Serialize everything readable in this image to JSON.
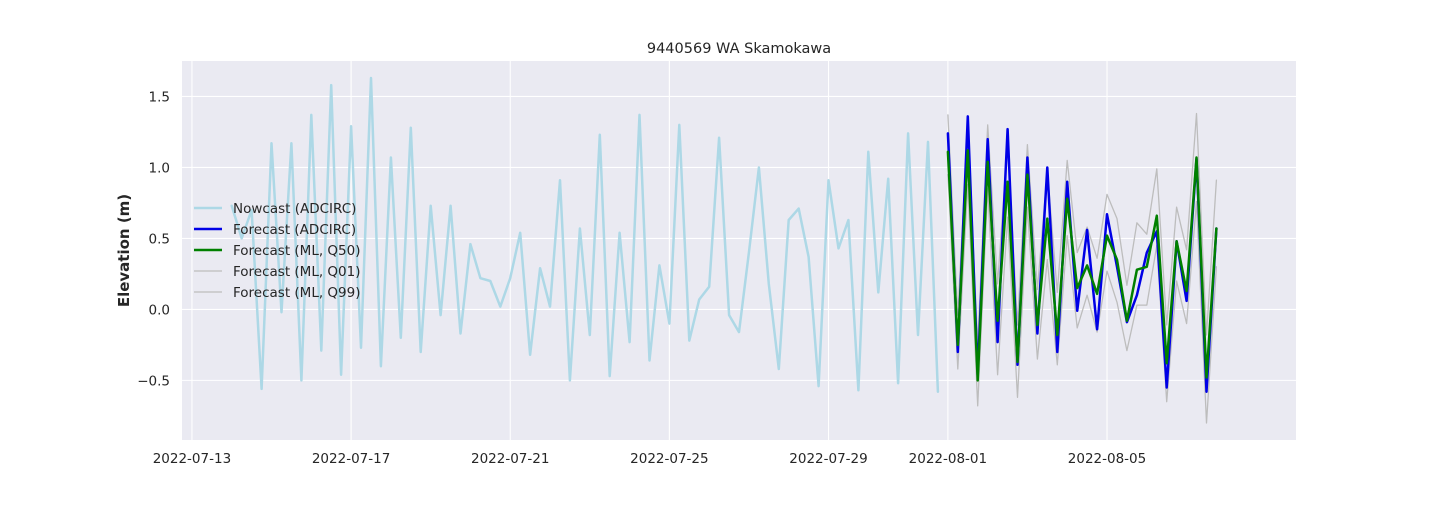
{
  "chart_data": {
    "type": "line",
    "title": "9440569 WA Skamokawa",
    "xlabel": "",
    "ylabel": "Elevation (m)",
    "x_unit": "date",
    "xlim": [
      "2022-07-12T18:00",
      "2022-08-09T18:00"
    ],
    "ylim": [
      -0.92,
      1.75
    ],
    "x_ticks": [
      "2022-07-13",
      "2022-07-17",
      "2022-07-21",
      "2022-07-25",
      "2022-07-29",
      "2022-08-01",
      "2022-08-05"
    ],
    "y_ticks": [
      -0.5,
      0.0,
      0.5,
      1.0,
      1.5
    ],
    "y_tick_labels": [
      "−0.5",
      "0.0",
      "0.5",
      "1.0",
      "1.5"
    ],
    "grid": true,
    "background_color": "#eaeaf2",
    "legend_position": "center-left",
    "series": [
      {
        "name": "Nowcast (ADCIRC)",
        "color": "#add8e6",
        "width": 2.5,
        "points": [
          [
            "2022-07-14T00:00",
            0.73
          ],
          [
            "2022-07-14T06:00",
            0.5
          ],
          [
            "2022-07-14T12:00",
            0.7
          ],
          [
            "2022-07-14T18:00",
            -0.56
          ],
          [
            "2022-07-15T00:00",
            1.17
          ],
          [
            "2022-07-15T06:00",
            -0.02
          ],
          [
            "2022-07-15T12:00",
            1.17
          ],
          [
            "2022-07-15T18:00",
            -0.5
          ],
          [
            "2022-07-16T00:00",
            1.37
          ],
          [
            "2022-07-16T06:00",
            -0.29
          ],
          [
            "2022-07-16T12:00",
            1.58
          ],
          [
            "2022-07-16T18:00",
            -0.46
          ],
          [
            "2022-07-17T00:00",
            1.29
          ],
          [
            "2022-07-17T06:00",
            -0.27
          ],
          [
            "2022-07-17T12:00",
            1.63
          ],
          [
            "2022-07-17T18:00",
            -0.4
          ],
          [
            "2022-07-18T00:00",
            1.07
          ],
          [
            "2022-07-18T06:00",
            -0.2
          ],
          [
            "2022-07-18T12:00",
            1.28
          ],
          [
            "2022-07-18T18:00",
            -0.3
          ],
          [
            "2022-07-19T00:00",
            0.73
          ],
          [
            "2022-07-19T06:00",
            -0.04
          ],
          [
            "2022-07-19T12:00",
            0.73
          ],
          [
            "2022-07-19T18:00",
            -0.17
          ],
          [
            "2022-07-20T00:00",
            0.46
          ],
          [
            "2022-07-20T06:00",
            0.22
          ],
          [
            "2022-07-20T12:00",
            0.2
          ],
          [
            "2022-07-20T18:00",
            0.02
          ],
          [
            "2022-07-21T00:00",
            0.22
          ],
          [
            "2022-07-21T06:00",
            0.54
          ],
          [
            "2022-07-21T12:00",
            -0.32
          ],
          [
            "2022-07-21T18:00",
            0.29
          ],
          [
            "2022-07-22T00:00",
            0.02
          ],
          [
            "2022-07-22T06:00",
            0.91
          ],
          [
            "2022-07-22T12:00",
            -0.5
          ],
          [
            "2022-07-22T18:00",
            0.57
          ],
          [
            "2022-07-23T00:00",
            -0.18
          ],
          [
            "2022-07-23T06:00",
            1.23
          ],
          [
            "2022-07-23T12:00",
            -0.47
          ],
          [
            "2022-07-23T18:00",
            0.54
          ],
          [
            "2022-07-24T00:00",
            -0.23
          ],
          [
            "2022-07-24T06:00",
            1.37
          ],
          [
            "2022-07-24T12:00",
            -0.36
          ],
          [
            "2022-07-24T18:00",
            0.31
          ],
          [
            "2022-07-25T00:00",
            -0.1
          ],
          [
            "2022-07-25T06:00",
            1.3
          ],
          [
            "2022-07-25T12:00",
            -0.22
          ],
          [
            "2022-07-25T18:00",
            0.07
          ],
          [
            "2022-07-26T00:00",
            0.16
          ],
          [
            "2022-07-26T06:00",
            1.21
          ],
          [
            "2022-07-26T12:00",
            -0.04
          ],
          [
            "2022-07-26T18:00",
            -0.16
          ],
          [
            "2022-07-27T00:00",
            0.4
          ],
          [
            "2022-07-27T06:00",
            1.0
          ],
          [
            "2022-07-27T12:00",
            0.18
          ],
          [
            "2022-07-27T18:00",
            -0.42
          ],
          [
            "2022-07-28T00:00",
            0.63
          ],
          [
            "2022-07-28T06:00",
            0.71
          ],
          [
            "2022-07-28T12:00",
            0.37
          ],
          [
            "2022-07-28T18:00",
            -0.54
          ],
          [
            "2022-07-29T00:00",
            0.91
          ],
          [
            "2022-07-29T06:00",
            0.43
          ],
          [
            "2022-07-29T12:00",
            0.63
          ],
          [
            "2022-07-29T18:00",
            -0.57
          ],
          [
            "2022-07-30T00:00",
            1.11
          ],
          [
            "2022-07-30T06:00",
            0.12
          ],
          [
            "2022-07-30T12:00",
            0.92
          ],
          [
            "2022-07-30T18:00",
            -0.52
          ],
          [
            "2022-07-31T00:00",
            1.24
          ],
          [
            "2022-07-31T06:00",
            -0.18
          ],
          [
            "2022-07-31T12:00",
            1.18
          ],
          [
            "2022-07-31T18:00",
            -0.58
          ]
        ]
      },
      {
        "name": "Forecast (ADCIRC)",
        "color": "#0000e6",
        "width": 2.5,
        "points": [
          [
            "2022-08-01T00:00",
            1.24
          ],
          [
            "2022-08-01T06:00",
            -0.3
          ],
          [
            "2022-08-01T12:00",
            1.36
          ],
          [
            "2022-08-01T18:00",
            -0.46
          ],
          [
            "2022-08-02T00:00",
            1.2
          ],
          [
            "2022-08-02T06:00",
            -0.23
          ],
          [
            "2022-08-02T12:00",
            1.27
          ],
          [
            "2022-08-02T18:00",
            -0.39
          ],
          [
            "2022-08-03T00:00",
            1.07
          ],
          [
            "2022-08-03T06:00",
            -0.17
          ],
          [
            "2022-08-03T12:00",
            1.0
          ],
          [
            "2022-08-03T18:00",
            -0.3
          ],
          [
            "2022-08-04T00:00",
            0.9
          ],
          [
            "2022-08-04T06:00",
            -0.01
          ],
          [
            "2022-08-04T12:00",
            0.56
          ],
          [
            "2022-08-04T18:00",
            -0.14
          ],
          [
            "2022-08-05T00:00",
            0.67
          ],
          [
            "2022-08-05T06:00",
            0.3
          ],
          [
            "2022-08-05T12:00",
            -0.09
          ],
          [
            "2022-08-05T18:00",
            0.1
          ],
          [
            "2022-08-06T00:00",
            0.4
          ],
          [
            "2022-08-06T06:00",
            0.55
          ],
          [
            "2022-08-06T12:00",
            -0.55
          ],
          [
            "2022-08-06T18:00",
            0.48
          ],
          [
            "2022-08-07T00:00",
            0.06
          ],
          [
            "2022-08-07T06:00",
            1.06
          ],
          [
            "2022-08-07T12:00",
            -0.58
          ],
          [
            "2022-08-07T18:00",
            0.57
          ]
        ]
      },
      {
        "name": "Forecast (ML, Q50)",
        "color": "#008000",
        "width": 2.5,
        "points": [
          [
            "2022-08-01T00:00",
            1.11
          ],
          [
            "2022-08-01T06:00",
            -0.25
          ],
          [
            "2022-08-01T12:00",
            1.12
          ],
          [
            "2022-08-01T18:00",
            -0.5
          ],
          [
            "2022-08-02T00:00",
            1.04
          ],
          [
            "2022-08-02T06:00",
            -0.08
          ],
          [
            "2022-08-02T12:00",
            0.9
          ],
          [
            "2022-08-02T18:00",
            -0.37
          ],
          [
            "2022-08-03T00:00",
            0.95
          ],
          [
            "2022-08-03T06:00",
            -0.11
          ],
          [
            "2022-08-03T12:00",
            0.64
          ],
          [
            "2022-08-03T18:00",
            -0.18
          ],
          [
            "2022-08-04T00:00",
            0.78
          ],
          [
            "2022-08-04T06:00",
            0.15
          ],
          [
            "2022-08-04T12:00",
            0.31
          ],
          [
            "2022-08-04T18:00",
            0.11
          ],
          [
            "2022-08-05T00:00",
            0.52
          ],
          [
            "2022-08-05T06:00",
            0.35
          ],
          [
            "2022-08-05T12:00",
            -0.08
          ],
          [
            "2022-08-05T18:00",
            0.28
          ],
          [
            "2022-08-06T00:00",
            0.3
          ],
          [
            "2022-08-06T06:00",
            0.66
          ],
          [
            "2022-08-06T12:00",
            -0.38
          ],
          [
            "2022-08-06T18:00",
            0.48
          ],
          [
            "2022-08-07T00:00",
            0.13
          ],
          [
            "2022-08-07T06:00",
            1.07
          ],
          [
            "2022-08-07T12:00",
            -0.48
          ],
          [
            "2022-08-07T18:00",
            0.57
          ]
        ]
      },
      {
        "name": "Forecast (ML, Q01)",
        "color": "#bdbdbd",
        "width": 1.3,
        "points": [
          [
            "2022-08-01T00:00",
            0.95
          ],
          [
            "2022-08-01T06:00",
            -0.42
          ],
          [
            "2022-08-01T12:00",
            0.88
          ],
          [
            "2022-08-01T18:00",
            -0.68
          ],
          [
            "2022-08-02T00:00",
            0.85
          ],
          [
            "2022-08-02T06:00",
            -0.46
          ],
          [
            "2022-08-02T12:00",
            0.65
          ],
          [
            "2022-08-02T18:00",
            -0.62
          ],
          [
            "2022-08-03T00:00",
            0.72
          ],
          [
            "2022-08-03T06:00",
            -0.35
          ],
          [
            "2022-08-03T12:00",
            0.35
          ],
          [
            "2022-08-03T18:00",
            -0.39
          ],
          [
            "2022-08-04T00:00",
            0.52
          ],
          [
            "2022-08-04T06:00",
            -0.13
          ],
          [
            "2022-08-04T12:00",
            0.1
          ],
          [
            "2022-08-04T18:00",
            -0.16
          ],
          [
            "2022-08-05T00:00",
            0.27
          ],
          [
            "2022-08-05T06:00",
            0.05
          ],
          [
            "2022-08-05T12:00",
            -0.29
          ],
          [
            "2022-08-05T18:00",
            0.03
          ],
          [
            "2022-08-06T00:00",
            0.03
          ],
          [
            "2022-08-06T06:00",
            0.45
          ],
          [
            "2022-08-06T12:00",
            -0.65
          ],
          [
            "2022-08-06T18:00",
            0.2
          ],
          [
            "2022-08-07T00:00",
            -0.1
          ],
          [
            "2022-08-07T06:00",
            0.76
          ],
          [
            "2022-08-07T12:00",
            -0.8
          ],
          [
            "2022-08-07T18:00",
            0.3
          ]
        ]
      },
      {
        "name": "Forecast (ML, Q99)",
        "color": "#bdbdbd",
        "width": 1.3,
        "points": [
          [
            "2022-08-01T00:00",
            1.37
          ],
          [
            "2022-08-01T06:00",
            -0.04
          ],
          [
            "2022-08-01T12:00",
            1.32
          ],
          [
            "2022-08-01T18:00",
            -0.25
          ],
          [
            "2022-08-02T00:00",
            1.3
          ],
          [
            "2022-08-02T06:00",
            0.18
          ],
          [
            "2022-08-02T12:00",
            1.18
          ],
          [
            "2022-08-02T18:00",
            -0.11
          ],
          [
            "2022-08-03T00:00",
            1.16
          ],
          [
            "2022-08-03T06:00",
            0.14
          ],
          [
            "2022-08-03T12:00",
            0.98
          ],
          [
            "2022-08-03T18:00",
            0.12
          ],
          [
            "2022-08-04T00:00",
            1.05
          ],
          [
            "2022-08-04T06:00",
            0.4
          ],
          [
            "2022-08-04T12:00",
            0.58
          ],
          [
            "2022-08-04T18:00",
            0.36
          ],
          [
            "2022-08-05T00:00",
            0.81
          ],
          [
            "2022-08-05T06:00",
            0.64
          ],
          [
            "2022-08-05T12:00",
            0.17
          ],
          [
            "2022-08-05T18:00",
            0.61
          ],
          [
            "2022-08-06T00:00",
            0.53
          ],
          [
            "2022-08-06T06:00",
            0.99
          ],
          [
            "2022-08-06T12:00",
            -0.11
          ],
          [
            "2022-08-06T18:00",
            0.72
          ],
          [
            "2022-08-07T00:00",
            0.42
          ],
          [
            "2022-08-07T06:00",
            1.38
          ],
          [
            "2022-08-07T12:00",
            -0.18
          ],
          [
            "2022-08-07T18:00",
            0.91
          ]
        ]
      }
    ]
  }
}
